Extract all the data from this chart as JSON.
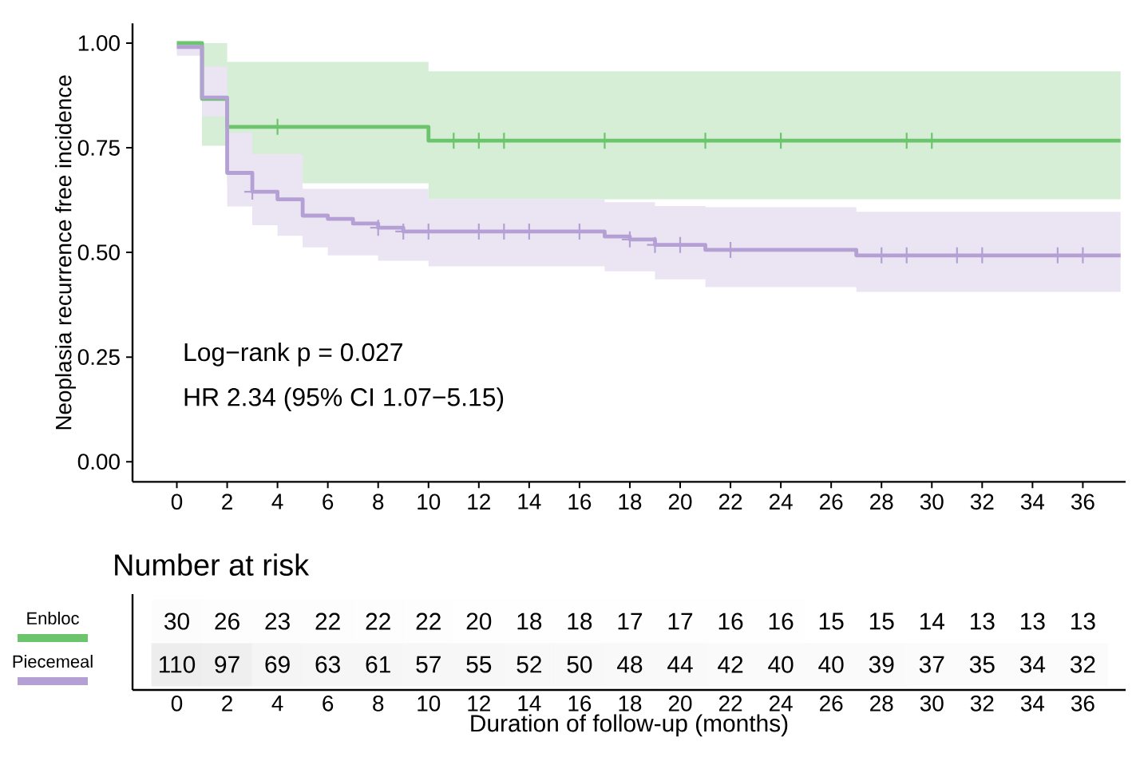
{
  "chart_data": [
    {
      "type": "step",
      "ylabel": "Neoplasia recurrence free incidence",
      "xlim": [
        -1.76,
        37.7
      ],
      "ylim": [
        -0.048,
        1.047
      ],
      "xticks": [
        0,
        2,
        4,
        6,
        8,
        10,
        12,
        14,
        16,
        18,
        20,
        22,
        24,
        26,
        28,
        30,
        32,
        34,
        36
      ],
      "yticks": [
        {
          "value": 0,
          "label": "0.00"
        },
        {
          "value": 0.25,
          "label": "0.25"
        },
        {
          "value": 0.5,
          "label": "0.50"
        },
        {
          "value": 0.75,
          "label": "0.75"
        },
        {
          "value": 1,
          "label": "1.00"
        }
      ],
      "series": [
        {
          "type": "step",
          "color": "#6cc46c",
          "x": [
            0,
            1,
            2,
            10,
            37.5
          ],
          "values": [
            1,
            0.867,
            0.8,
            0.767,
            0.767
          ],
          "lower": [
            1,
            0.755,
            0.665,
            0.627,
            0.627
          ],
          "upper": [
            1,
            1.0,
            0.955,
            0.933,
            0.933
          ]
        },
        {
          "type": "step",
          "color": "#b4a0d4",
          "x": [
            0,
            1,
            2,
            3,
            4,
            5,
            6,
            7,
            8,
            9,
            10,
            17,
            18,
            19,
            21,
            27,
            37.5
          ],
          "values": [
            0.991,
            0.87,
            0.69,
            0.645,
            0.627,
            0.588,
            0.58,
            0.569,
            0.559,
            0.55,
            0.55,
            0.538,
            0.531,
            0.518,
            0.506,
            0.493,
            0.493
          ],
          "lower": [
            0.97,
            0.825,
            0.61,
            0.565,
            0.54,
            0.512,
            0.493,
            0.493,
            0.48,
            0.48,
            0.467,
            0.455,
            0.455,
            0.436,
            0.417,
            0.406,
            0.406
          ],
          "upper": [
            1,
            0.944,
            0.786,
            0.735,
            0.735,
            0.652,
            0.652,
            0.652,
            0.652,
            0.652,
            0.627,
            0.62,
            0.62,
            0.611,
            0.608,
            0.597,
            0.597
          ]
        },
        {
          "type": "scatter",
          "marker": "cross",
          "color": "#6cc46c",
          "x": [
            4,
            11,
            12,
            13,
            17,
            21,
            24,
            29,
            30
          ],
          "values": [
            0.8,
            0.767,
            0.767,
            0.767,
            0.767,
            0.767,
            0.767,
            0.767,
            0.767
          ]
        },
        {
          "type": "scatter",
          "marker": "cross",
          "color": "#b4a0d4",
          "x": [
            3,
            8,
            9,
            10,
            12,
            13,
            14,
            16,
            18,
            19,
            20,
            22,
            28,
            29,
            31,
            32,
            35,
            36
          ],
          "values": [
            0.645,
            0.559,
            0.55,
            0.55,
            0.55,
            0.55,
            0.55,
            0.55,
            0.531,
            0.518,
            0.518,
            0.506,
            0.493,
            0.493,
            0.493,
            0.493,
            0.493,
            0.493
          ]
        }
      ],
      "annotations": [
        "Log−rank p = 0.027",
        "HR 2.34 (95% CI 1.07−5.15)"
      ]
    },
    {
      "type": "heatmap",
      "title": "Number at risk",
      "xlabel": "Duration of follow-up (months)",
      "categories": [
        "0",
        "2",
        "4",
        "6",
        "8",
        "10",
        "12",
        "14",
        "16",
        "18",
        "20",
        "22",
        "24",
        "26",
        "28",
        "30",
        "32",
        "34",
        "36"
      ],
      "y_categories": [
        "Enbloc",
        "Piecemeal"
      ],
      "cells": [
        [
          30,
          26,
          23,
          22,
          22,
          22,
          20,
          18,
          18,
          17,
          17,
          16,
          16,
          15,
          15,
          14,
          13,
          13,
          13
        ],
        [
          110,
          97,
          69,
          63,
          61,
          57,
          55,
          52,
          50,
          48,
          44,
          42,
          40,
          40,
          39,
          37,
          35,
          34,
          32
        ]
      ],
      "cell_labels": [
        [
          "30",
          "26",
          "23",
          "22",
          "22",
          "22",
          "20",
          "18",
          "18",
          "17",
          "17",
          "16",
          "16",
          "15",
          "15",
          "14",
          "13",
          "13",
          "13"
        ],
        [
          "110",
          "97",
          "69",
          "63",
          "61",
          "57",
          "55",
          "52",
          "50",
          "48",
          "44",
          "42",
          "40",
          "40",
          "39",
          "37",
          "35",
          "34",
          "32"
        ]
      ]
    }
  ]
}
